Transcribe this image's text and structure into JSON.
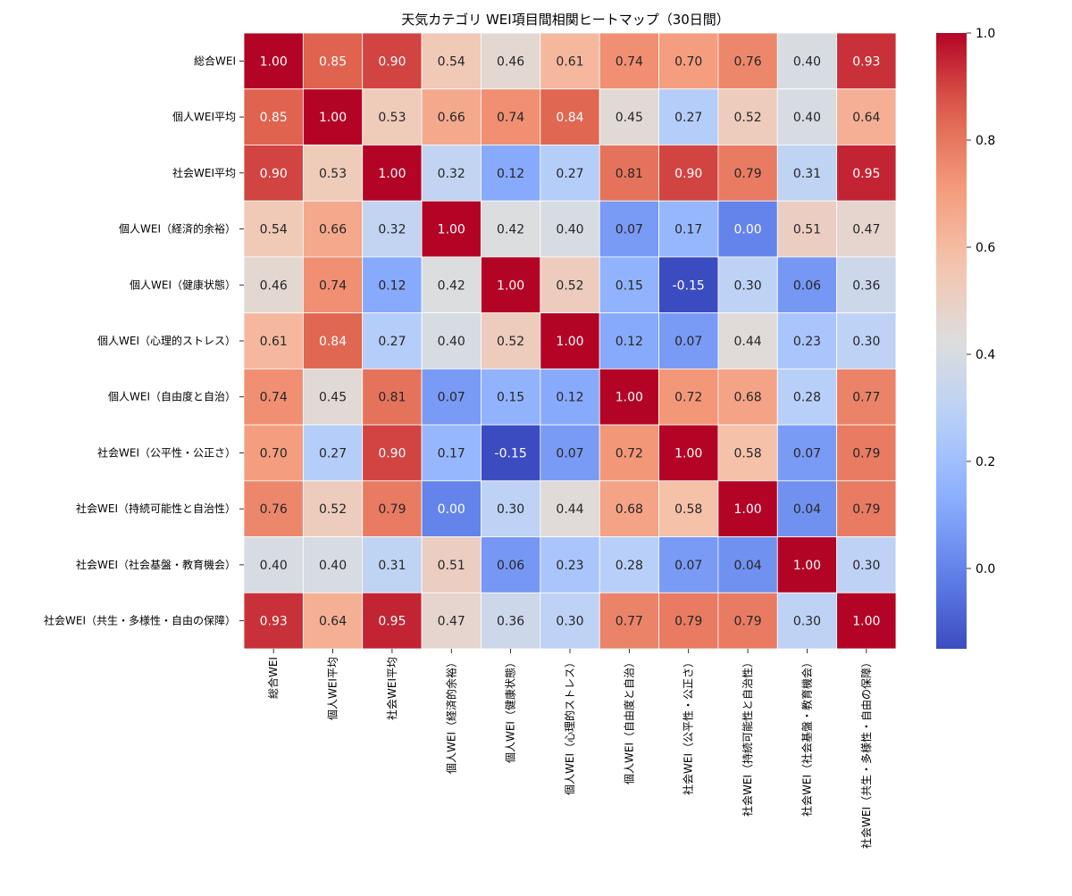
{
  "chart_data": {
    "type": "heatmap",
    "title": "天気カテゴリ WEI項目間相関ヒートマップ（30日間）",
    "xlabel": "",
    "ylabel": "",
    "labels": [
      "総合WEI",
      "個人WEI平均",
      "社会WEI平均",
      "個人WEI（経済的余裕）",
      "個人WEI（健康状態）",
      "個人WEI（心理的ストレス）",
      "個人WEI（自由度と自治）",
      "社会WEI（公平性・公正さ）",
      "社会WEI（持続可能性と自治性）",
      "社会WEI（社会基盤・教育機会）",
      "社会WEI（共生・多様性・自由の保障）"
    ],
    "matrix": [
      [
        1.0,
        0.85,
        0.9,
        0.54,
        0.46,
        0.61,
        0.74,
        0.7,
        0.76,
        0.4,
        0.93
      ],
      [
        0.85,
        1.0,
        0.53,
        0.66,
        0.74,
        0.84,
        0.45,
        0.27,
        0.52,
        0.4,
        0.64
      ],
      [
        0.9,
        0.53,
        1.0,
        0.32,
        0.12,
        0.27,
        0.81,
        0.9,
        0.79,
        0.31,
        0.95
      ],
      [
        0.54,
        0.66,
        0.32,
        1.0,
        0.42,
        0.4,
        0.07,
        0.17,
        0.0,
        0.51,
        0.47
      ],
      [
        0.46,
        0.74,
        0.12,
        0.42,
        1.0,
        0.52,
        0.15,
        -0.15,
        0.3,
        0.06,
        0.36
      ],
      [
        0.61,
        0.84,
        0.27,
        0.4,
        0.52,
        1.0,
        0.12,
        0.07,
        0.44,
        0.23,
        0.3
      ],
      [
        0.74,
        0.45,
        0.81,
        0.07,
        0.15,
        0.12,
        1.0,
        0.72,
        0.68,
        0.28,
        0.77
      ],
      [
        0.7,
        0.27,
        0.9,
        0.17,
        -0.15,
        0.07,
        0.72,
        1.0,
        0.58,
        0.07,
        0.79
      ],
      [
        0.76,
        0.52,
        0.79,
        0.0,
        0.3,
        0.44,
        0.68,
        0.58,
        1.0,
        0.04,
        0.79
      ],
      [
        0.4,
        0.4,
        0.31,
        0.51,
        0.06,
        0.23,
        0.28,
        0.07,
        0.04,
        1.0,
        0.3
      ],
      [
        0.93,
        0.64,
        0.95,
        0.47,
        0.36,
        0.3,
        0.77,
        0.79,
        0.79,
        0.3,
        1.0
      ]
    ],
    "colormap": "coolwarm",
    "vmin": -0.15,
    "vmax": 1.0,
    "colorbar_ticks": [
      "1.0",
      "0.8",
      "0.6",
      "0.4",
      "0.2",
      "0.0"
    ],
    "colorbar_tick_values": [
      1.0,
      0.8,
      0.6,
      0.4,
      0.2,
      0.0
    ],
    "annotation_format": "2 decimals"
  }
}
